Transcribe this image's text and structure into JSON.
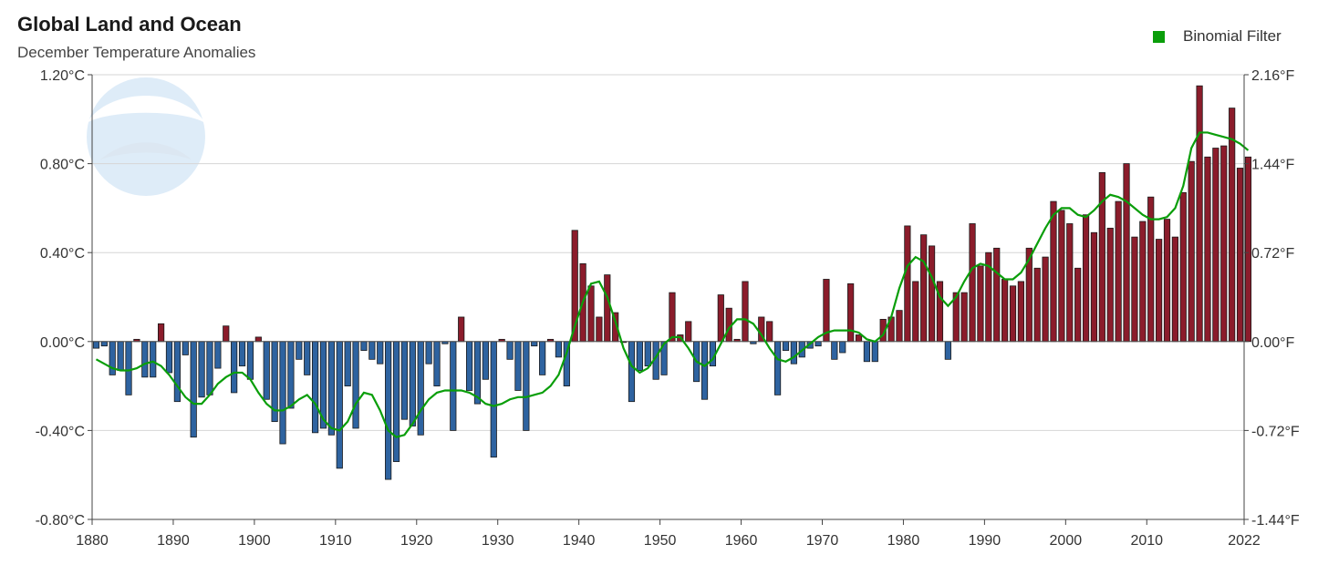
{
  "chart_data": {
    "type": "bar",
    "title": "Global Land and Ocean",
    "subtitle": "December Temperature Anomalies",
    "legend": {
      "label": "Binomial Filter",
      "color": "#0a9e0a",
      "placement": "top-right"
    },
    "colors": {
      "positive": "#8b1c2b",
      "negative": "#2e63a0",
      "filter": "#0a9e0a",
      "grid": "#d6d6d6",
      "axis": "#444444"
    },
    "x_start": 1880,
    "x_ticks": [
      "1880",
      "1890",
      "1900",
      "1910",
      "1920",
      "1930",
      "1940",
      "1950",
      "1960",
      "1970",
      "1980",
      "1990",
      "2000",
      "2010",
      "2022"
    ],
    "y_left_ticks": [
      "1.20°C",
      "0.80°C",
      "0.40°C",
      "0.00°C",
      "-0.40°C",
      "-0.80°C"
    ],
    "y_right_ticks": [
      "2.16°F",
      "1.44°F",
      "0.72°F",
      "0.00°F",
      "-0.72°F",
      "-1.44°F"
    ],
    "ylim": [
      -0.8,
      1.2
    ],
    "grid": true,
    "watermark": "NOAA",
    "values": [
      -0.03,
      -0.02,
      -0.15,
      -0.13,
      -0.24,
      0.01,
      -0.16,
      -0.16,
      0.08,
      -0.14,
      -0.27,
      -0.06,
      -0.43,
      -0.25,
      -0.24,
      -0.12,
      0.07,
      -0.23,
      -0.11,
      -0.17,
      0.02,
      -0.26,
      -0.36,
      -0.46,
      -0.3,
      -0.08,
      -0.15,
      -0.41,
      -0.39,
      -0.42,
      -0.57,
      -0.2,
      -0.39,
      -0.04,
      -0.08,
      -0.1,
      -0.62,
      -0.54,
      -0.35,
      -0.38,
      -0.42,
      -0.1,
      -0.2,
      -0.01,
      -0.4,
      0.11,
      -0.22,
      -0.28,
      -0.17,
      -0.52,
      0.01,
      -0.08,
      -0.22,
      -0.4,
      -0.02,
      -0.15,
      0.01,
      -0.07,
      -0.2,
      0.5,
      0.35,
      0.25,
      0.11,
      0.3,
      0.13,
      0.0,
      -0.27,
      -0.13,
      -0.11,
      -0.17,
      -0.15,
      0.22,
      0.03,
      0.09,
      -0.18,
      -0.26,
      -0.11,
      0.21,
      0.15,
      0.01,
      0.27,
      -0.01,
      0.11,
      0.09,
      -0.24,
      -0.04,
      -0.1,
      -0.07,
      -0.03,
      -0.02,
      0.28,
      -0.08,
      -0.05,
      0.26,
      0.03,
      -0.09,
      -0.09,
      0.1,
      0.11,
      0.14,
      0.52,
      0.27,
      0.48,
      0.43,
      0.27,
      -0.08,
      0.22,
      0.22,
      0.53,
      0.34,
      0.4,
      0.42,
      0.28,
      0.25,
      0.27,
      0.42,
      0.33,
      0.38,
      0.63,
      0.59,
      0.53,
      0.33,
      0.57,
      0.49,
      0.76,
      0.51,
      0.63,
      0.8,
      0.47,
      0.54,
      0.65,
      0.46,
      0.55,
      0.47,
      0.67,
      0.81,
      1.15,
      0.83,
      0.87,
      0.88,
      1.05,
      0.78,
      0.83
    ],
    "filter_values": [
      -0.08,
      -0.1,
      -0.12,
      -0.13,
      -0.13,
      -0.12,
      -0.1,
      -0.09,
      -0.11,
      -0.15,
      -0.2,
      -0.25,
      -0.28,
      -0.28,
      -0.24,
      -0.19,
      -0.16,
      -0.14,
      -0.14,
      -0.17,
      -0.23,
      -0.28,
      -0.31,
      -0.31,
      -0.29,
      -0.26,
      -0.24,
      -0.28,
      -0.35,
      -0.39,
      -0.4,
      -0.36,
      -0.28,
      -0.23,
      -0.24,
      -0.31,
      -0.4,
      -0.43,
      -0.42,
      -0.37,
      -0.31,
      -0.26,
      -0.23,
      -0.22,
      -0.22,
      -0.22,
      -0.23,
      -0.25,
      -0.28,
      -0.29,
      -0.28,
      -0.26,
      -0.25,
      -0.25,
      -0.24,
      -0.23,
      -0.2,
      -0.15,
      -0.05,
      0.07,
      0.18,
      0.26,
      0.27,
      0.2,
      0.09,
      -0.03,
      -0.11,
      -0.14,
      -0.12,
      -0.07,
      -0.01,
      0.02,
      0.02,
      -0.03,
      -0.09,
      -0.11,
      -0.08,
      -0.01,
      0.06,
      0.1,
      0.1,
      0.08,
      0.03,
      -0.03,
      -0.08,
      -0.09,
      -0.07,
      -0.04,
      -0.01,
      0.02,
      0.04,
      0.05,
      0.05,
      0.05,
      0.04,
      0.01,
      0.0,
      0.03,
      0.11,
      0.24,
      0.34,
      0.38,
      0.36,
      0.29,
      0.2,
      0.16,
      0.2,
      0.27,
      0.33,
      0.35,
      0.34,
      0.31,
      0.28,
      0.28,
      0.31,
      0.37,
      0.44,
      0.51,
      0.57,
      0.6,
      0.6,
      0.57,
      0.56,
      0.59,
      0.63,
      0.66,
      0.65,
      0.63,
      0.6,
      0.57,
      0.55,
      0.55,
      0.56,
      0.6,
      0.7,
      0.87,
      0.94,
      0.94,
      0.93,
      0.92,
      0.91,
      0.89,
      0.86
    ]
  }
}
